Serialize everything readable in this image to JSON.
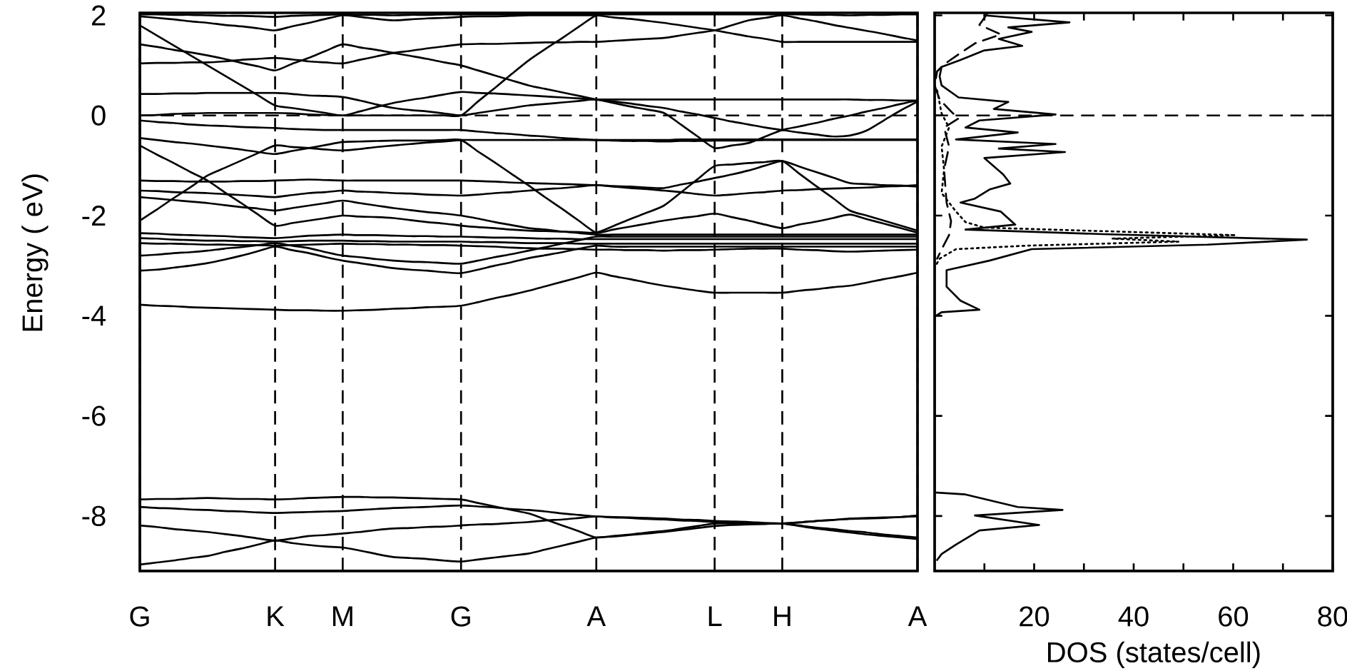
{
  "chart_data": [
    {
      "type": "line",
      "ylabel": "Energy ( eV)",
      "grid": "x",
      "categories": [
        "G",
        null,
        null,
        null,
        null,
        null,
        null,
        null,
        "K",
        null,
        null,
        null,
        "M",
        null,
        null,
        null,
        null,
        null,
        null,
        "G",
        null,
        null,
        null,
        null,
        null,
        null,
        null,
        "A",
        null,
        null,
        null,
        null,
        null,
        null,
        "L",
        null,
        null,
        null,
        "H",
        null,
        null,
        null,
        null,
        null,
        null,
        null,
        "A"
      ],
      "ylim": [
        -9.1,
        2.05
      ],
      "yticks": [
        -8,
        -6,
        -4,
        -2,
        0,
        2
      ],
      "ref_lines": [
        {
          "axis": "y",
          "value": 0,
          "line_style": "dashed"
        }
      ],
      "series": [
        {
          "color": "#000000",
          "values": [
            2.02,
            2.02,
            2.01,
            2.01,
            2.0,
            1.99,
            1.99,
            1.98,
            1.97,
            1.99,
            2.0,
            2.01,
            2.02,
            2.01,
            2.01,
            2.0,
            2.01,
            2.01,
            2.02,
            2.02,
            2.02,
            2.02,
            2.02,
            2.02,
            2.02,
            2.02,
            2.02,
            2.02,
            2.02,
            2.02,
            2.02,
            2.02,
            2.02,
            2.02,
            2.02,
            2.02,
            2.02,
            2.02,
            2.02,
            2.02,
            2.01,
            2.01,
            2.0,
            2.01,
            2.01,
            2.02,
            2.02
          ]
        },
        {
          "color": "#000000",
          "values": [
            1.98,
            1.95,
            1.92,
            1.88,
            1.85,
            1.81,
            1.78,
            1.74,
            1.7,
            1.78,
            1.85,
            1.93,
            2.0,
            1.97,
            1.93,
            1.9,
            1.92,
            1.94,
            1.95,
            1.97,
            1.98,
            1.98,
            1.99,
            2.0,
            2.0,
            2.0,
            2.0,
            2.0,
            1.96,
            1.93,
            1.89,
            1.85,
            1.8,
            1.75,
            1.7,
            1.64,
            1.58,
            1.53,
            1.47,
            1.47,
            1.47,
            1.47,
            1.47,
            1.47,
            1.47,
            1.47,
            1.47
          ]
        },
        {
          "color": "#000000",
          "values": [
            1.8,
            1.6,
            1.4,
            1.2,
            1.0,
            0.8,
            0.6,
            0.4,
            0.2,
            0.15,
            0.1,
            0.05,
            0.0,
            0.08,
            0.17,
            0.25,
            0.31,
            0.36,
            0.42,
            0.47,
            0.45,
            0.44,
            0.42,
            0.4,
            0.38,
            0.36,
            0.34,
            0.32,
            0.32,
            0.32,
            0.32,
            0.32,
            0.32,
            0.32,
            0.32,
            0.32,
            0.32,
            0.32,
            0.32,
            0.32,
            0.32,
            0.32,
            0.32,
            0.31,
            0.31,
            0.3,
            0.3
          ]
        },
        {
          "color": "#000000",
          "values": [
            1.42,
            1.37,
            1.31,
            1.26,
            1.2,
            1.13,
            1.05,
            0.98,
            0.9,
            1.03,
            1.15,
            1.29,
            1.42,
            1.36,
            1.31,
            1.25,
            1.19,
            1.13,
            1.06,
            1.0,
            0.9,
            0.8,
            0.7,
            0.6,
            0.53,
            0.46,
            0.39,
            0.32,
            0.28,
            0.24,
            0.19,
            0.15,
            0.08,
            0.02,
            -0.05,
            -0.12,
            -0.18,
            -0.24,
            -0.29,
            -0.34,
            -0.38,
            -0.42,
            -0.4,
            -0.3,
            -0.1,
            0.1,
            0.28
          ]
        },
        {
          "color": "#000000",
          "values": [
            1.04,
            1.05,
            1.05,
            1.06,
            1.06,
            1.08,
            1.11,
            1.13,
            1.15,
            1.12,
            1.08,
            1.06,
            1.04,
            1.11,
            1.18,
            1.25,
            1.29,
            1.34,
            1.38,
            1.42,
            1.43,
            1.43,
            1.44,
            1.45,
            1.46,
            1.46,
            1.47,
            1.47,
            1.49,
            1.51,
            1.53,
            1.55,
            1.6,
            1.65,
            1.7,
            1.8,
            1.9,
            1.95,
            2.0,
            1.94,
            1.88,
            1.81,
            1.75,
            1.69,
            1.63,
            1.56,
            1.5
          ]
        },
        {
          "color": "#000000",
          "values": [
            0.43,
            0.43,
            0.44,
            0.44,
            0.45,
            0.45,
            0.45,
            0.45,
            0.45,
            0.43,
            0.4,
            0.39,
            0.37,
            0.3,
            0.22,
            0.15,
            0.11,
            0.08,
            0.04,
            0.0,
            0.05,
            0.1,
            0.15,
            0.2,
            0.23,
            0.26,
            0.29,
            0.32,
            0.25,
            0.18,
            0.12,
            0.05,
            -0.18,
            -0.42,
            -0.65,
            -0.6,
            -0.55,
            -0.42,
            -0.29,
            -0.22,
            -0.15,
            -0.07,
            0.0,
            0.08,
            0.15,
            0.23,
            0.3
          ]
        },
        {
          "color": "#000000",
          "values": [
            0.0,
            0.01,
            0.03,
            0.04,
            0.05,
            0.05,
            0.05,
            0.05,
            0.05,
            0.04,
            0.02,
            0.01,
            0.0,
            0.0,
            0.0,
            0.0,
            0.0,
            0.0,
            0.0,
            0.0,
            0.28,
            0.55,
            0.83,
            1.1,
            1.33,
            1.55,
            1.78,
            2.0,
            2.05,
            null,
            null,
            null,
            null,
            null,
            null,
            null,
            null,
            null,
            null,
            null,
            null,
            null,
            null,
            null,
            null,
            null,
            null
          ]
        },
        {
          "color": "#000000",
          "values": [
            -0.1,
            -0.13,
            -0.15,
            -0.18,
            -0.2,
            -0.21,
            -0.23,
            -0.24,
            -0.25,
            -0.27,
            -0.28,
            -0.29,
            -0.29,
            -0.29,
            -0.29,
            -0.29,
            -0.29,
            -0.29,
            -0.29,
            -0.29,
            -0.32,
            -0.35,
            -0.37,
            -0.4,
            -0.42,
            -0.45,
            -0.47,
            -0.49,
            -0.49,
            -0.49,
            -0.49,
            -0.49,
            -0.48,
            -0.48,
            -0.48,
            -0.48,
            -0.48,
            -0.48,
            -0.48,
            -0.48,
            -0.48,
            -0.48,
            -0.48,
            -0.48,
            -0.48,
            -0.48,
            -0.48
          ]
        },
        {
          "color": "#000000",
          "values": [
            -0.45,
            -0.49,
            -0.53,
            -0.56,
            -0.6,
            -0.64,
            -0.68,
            -0.73,
            -0.77,
            -0.71,
            -0.65,
            -0.59,
            -0.53,
            -0.52,
            -0.51,
            -0.5,
            -0.5,
            -0.5,
            -0.49,
            -0.49,
            -0.72,
            -0.94,
            -1.17,
            -1.4,
            -1.64,
            -1.87,
            -2.11,
            -2.34,
            -2.28,
            -2.22,
            -2.16,
            -2.1,
            -2.05,
            -2.01,
            -1.96,
            -2.03,
            -2.1,
            -2.18,
            -2.25,
            -2.18,
            -2.12,
            -2.05,
            -1.98,
            -2.07,
            -2.16,
            -2.25,
            -2.34
          ]
        },
        {
          "color": "#000000",
          "values": [
            -0.6,
            -0.78,
            -0.95,
            -1.13,
            -1.3,
            -1.53,
            -1.75,
            -1.98,
            -2.2,
            -2.15,
            -2.1,
            -2.05,
            -2.0,
            -2.02,
            -2.03,
            -2.05,
            -2.09,
            -2.13,
            -2.16,
            -2.2,
            -2.23,
            -2.25,
            -2.28,
            -2.3,
            -2.31,
            -2.32,
            -2.33,
            -2.34,
            -2.21,
            -2.07,
            -1.94,
            -1.8,
            -1.54,
            -1.27,
            -1.01,
            -0.98,
            -0.95,
            -0.93,
            -0.91,
            -1.16,
            -1.41,
            -1.65,
            -1.9,
            -2.0,
            -2.1,
            -2.2,
            -2.3
          ]
        },
        {
          "color": "#000000",
          "values": [
            -2.1,
            -1.88,
            -1.65,
            -1.43,
            -1.2,
            -1.05,
            -0.9,
            -0.75,
            -0.6,
            -0.63,
            -0.65,
            -0.68,
            -0.7,
            -0.67,
            -0.63,
            -0.6,
            -0.57,
            -0.54,
            -0.52,
            -0.49,
            -0.49,
            -0.49,
            -0.49,
            -0.49,
            -0.49,
            -0.49,
            -0.49,
            -0.49,
            -0.5,
            -0.51,
            -0.51,
            -0.52,
            -0.51,
            -0.51,
            -0.5,
            -0.5,
            -0.5,
            -0.49,
            -0.49,
            -0.49,
            -0.49,
            -0.49,
            -0.49,
            -0.49,
            -0.49,
            -0.49,
            -0.49
          ]
        },
        {
          "color": "#000000",
          "values": [
            -1.3,
            -1.31,
            -1.31,
            -1.32,
            -1.32,
            -1.32,
            -1.31,
            -1.31,
            -1.3,
            -1.29,
            -1.28,
            -1.29,
            -1.3,
            -1.3,
            -1.3,
            -1.3,
            -1.3,
            -1.3,
            -1.3,
            -1.3,
            -1.31,
            -1.32,
            -1.34,
            -1.35,
            -1.36,
            -1.37,
            -1.38,
            -1.39,
            -1.42,
            -1.45,
            -1.47,
            -1.5,
            -1.53,
            -1.57,
            -1.6,
            -1.58,
            -1.55,
            -1.53,
            -1.5,
            -1.49,
            -1.47,
            -1.46,
            -1.45,
            -1.44,
            -1.42,
            -1.41,
            -1.39
          ]
        },
        {
          "color": "#000000",
          "values": [
            -1.5,
            -1.51,
            -1.53,
            -1.54,
            -1.55,
            -1.57,
            -1.59,
            -1.61,
            -1.63,
            -1.59,
            -1.55,
            -1.53,
            -1.5,
            -1.52,
            -1.53,
            -1.55,
            -1.56,
            -1.58,
            -1.59,
            -1.6,
            -1.58,
            -1.55,
            -1.53,
            -1.5,
            -1.47,
            -1.45,
            -1.42,
            -1.39,
            -1.41,
            -1.42,
            -1.44,
            -1.45,
            -1.38,
            -1.32,
            -1.25,
            -1.18,
            -1.1,
            -1.0,
            -0.91,
            -1.02,
            -1.13,
            -1.24,
            -1.35,
            -1.37,
            -1.39,
            -1.4,
            -1.42
          ]
        },
        {
          "color": "#000000",
          "values": [
            -1.63,
            -1.66,
            -1.69,
            -1.72,
            -1.75,
            -1.79,
            -1.83,
            -1.86,
            -1.9,
            -1.85,
            -1.8,
            -1.75,
            -1.7,
            -1.75,
            -1.8,
            -1.85,
            -1.89,
            -1.93,
            -1.96,
            -2.0,
            -2.06,
            -2.13,
            -2.19,
            -2.25,
            -2.28,
            -2.32,
            -2.35,
            -2.38,
            -2.38,
            -2.38,
            -2.38,
            -2.38,
            -2.38,
            -2.38,
            -2.38,
            -2.38,
            -2.38,
            -2.38,
            -2.38,
            -2.38,
            -2.38,
            -2.38,
            -2.38,
            -2.38,
            -2.38,
            -2.38,
            -2.38
          ]
        },
        {
          "color": "#000000",
          "values": [
            -2.35,
            -2.36,
            -2.38,
            -2.39,
            -2.4,
            -2.41,
            -2.43,
            -2.44,
            -2.45,
            -2.43,
            -2.4,
            -2.39,
            -2.38,
            -2.39,
            -2.39,
            -2.4,
            -2.41,
            -2.41,
            -2.42,
            -2.42,
            -2.43,
            -2.44,
            -2.44,
            -2.45,
            -2.46,
            -2.46,
            -2.47,
            -2.47,
            -2.47,
            -2.47,
            -2.47,
            -2.47,
            -2.47,
            -2.47,
            -2.47,
            -2.47,
            -2.47,
            -2.47,
            -2.47,
            -2.47,
            -2.47,
            -2.47,
            -2.47,
            -2.47,
            -2.47,
            -2.47,
            -2.47
          ]
        },
        {
          "color": "#000000",
          "values": [
            -2.45,
            -2.46,
            -2.48,
            -2.49,
            -2.5,
            -2.5,
            -2.51,
            -2.51,
            -2.52,
            -2.51,
            -2.5,
            -2.5,
            -2.5,
            -2.51,
            -2.51,
            -2.52,
            -2.52,
            -2.52,
            -2.52,
            -2.52,
            -2.53,
            -2.53,
            -2.54,
            -2.55,
            -2.55,
            -2.55,
            -2.56,
            -2.56,
            -2.56,
            -2.56,
            -2.56,
            -2.56,
            -2.56,
            -2.56,
            -2.56,
            -2.56,
            -2.56,
            -2.56,
            -2.56,
            -2.56,
            -2.56,
            -2.56,
            -2.56,
            -2.56,
            -2.56,
            -2.56,
            -2.56
          ]
        },
        {
          "color": "#000000",
          "values": [
            -2.55,
            -2.56,
            -2.56,
            -2.57,
            -2.58,
            -2.58,
            -2.59,
            -2.59,
            -2.6,
            -2.59,
            -2.58,
            -2.57,
            -2.56,
            -2.57,
            -2.57,
            -2.58,
            -2.58,
            -2.59,
            -2.59,
            -2.6,
            -2.61,
            -2.62,
            -2.64,
            -2.65,
            -2.66,
            -2.66,
            -2.67,
            -2.68,
            -2.68,
            -2.69,
            -2.69,
            -2.7,
            -2.69,
            -2.69,
            -2.68,
            -2.67,
            -2.66,
            -2.66,
            -2.66,
            -2.68,
            -2.69,
            -2.71,
            -2.72,
            -2.71,
            -2.7,
            -2.69,
            -2.68
          ]
        },
        {
          "color": "#000000",
          "values": [
            -2.8,
            -2.78,
            -2.75,
            -2.73,
            -2.7,
            -2.66,
            -2.63,
            -2.59,
            -2.55,
            -2.6,
            -2.65,
            -2.73,
            -2.8,
            -2.83,
            -2.87,
            -2.9,
            -2.92,
            -2.93,
            -2.95,
            -2.96,
            -2.9,
            -2.83,
            -2.77,
            -2.7,
            -2.63,
            -2.56,
            -2.49,
            -2.42,
            -2.42,
            -2.42,
            -2.42,
            -2.42,
            -2.42,
            -2.42,
            -2.42,
            -2.42,
            -2.42,
            -2.42,
            -2.42,
            -2.42,
            -2.42,
            -2.42,
            -2.42,
            -2.42,
            -2.42,
            -2.42,
            -2.42
          ]
        },
        {
          "color": "#000000",
          "values": [
            -3.1,
            -3.08,
            -3.04,
            -3.0,
            -2.95,
            -2.88,
            -2.8,
            -2.71,
            -2.62,
            -2.69,
            -2.75,
            -2.83,
            -2.9,
            -2.95,
            -3.0,
            -3.05,
            -3.08,
            -3.1,
            -3.13,
            -3.15,
            -3.08,
            -3.0,
            -2.93,
            -2.85,
            -2.79,
            -2.73,
            -2.66,
            -2.6,
            -2.62,
            -2.62,
            -2.62,
            -2.62,
            -2.62,
            -2.62,
            -2.62,
            -2.62,
            -2.62,
            -2.62,
            -2.62,
            -2.62,
            -2.62,
            -2.62,
            -2.62,
            -2.62,
            -2.62,
            -2.62,
            -2.62
          ]
        },
        {
          "color": "#000000",
          "values": [
            -3.78,
            -3.8,
            -3.81,
            -3.83,
            -3.84,
            -3.85,
            -3.86,
            -3.87,
            -3.88,
            -3.89,
            -3.89,
            -3.9,
            -3.9,
            -3.89,
            -3.88,
            -3.86,
            -3.85,
            -3.83,
            -3.82,
            -3.8,
            -3.73,
            -3.65,
            -3.58,
            -3.5,
            -3.41,
            -3.32,
            -3.23,
            -3.14,
            -3.21,
            -3.27,
            -3.34,
            -3.4,
            -3.45,
            -3.5,
            -3.54,
            -3.54,
            -3.54,
            -3.54,
            -3.54,
            -3.5,
            -3.47,
            -3.43,
            -3.4,
            -3.34,
            -3.27,
            -3.21,
            -3.14
          ]
        },
        {
          "color": "#000000",
          "values": [
            -7.67,
            -7.66,
            -7.66,
            -7.65,
            -7.64,
            -7.65,
            -7.66,
            -7.66,
            -7.67,
            -7.66,
            -7.64,
            -7.63,
            -7.62,
            -7.62,
            -7.63,
            -7.63,
            -7.64,
            -7.65,
            -7.66,
            -7.67,
            -7.74,
            -7.81,
            -7.88,
            -7.95,
            -8.07,
            -8.19,
            -8.31,
            -8.43,
            -8.4,
            -8.37,
            -8.33,
            -8.3,
            -8.25,
            -8.2,
            -8.15,
            -8.15,
            -8.15,
            -8.15,
            -8.15,
            -8.19,
            -8.23,
            -8.26,
            -8.3,
            -8.33,
            -8.37,
            -8.4,
            -8.43
          ]
        },
        {
          "color": "#000000",
          "values": [
            -7.82,
            -7.84,
            -7.85,
            -7.87,
            -7.88,
            -7.9,
            -7.91,
            -7.93,
            -7.94,
            -7.93,
            -7.92,
            -7.91,
            -7.9,
            -7.88,
            -7.86,
            -7.84,
            -7.83,
            -7.82,
            -7.8,
            -7.79,
            -7.81,
            -7.83,
            -7.86,
            -7.88,
            -7.91,
            -7.95,
            -7.98,
            -8.01,
            -8.02,
            -8.03,
            -8.04,
            -8.05,
            -8.07,
            -8.08,
            -8.1,
            -8.11,
            -8.12,
            -8.14,
            -8.15,
            -8.13,
            -8.1,
            -8.08,
            -8.06,
            -8.05,
            -8.04,
            -8.02,
            -8.01
          ]
        },
        {
          "color": "#000000",
          "values": [
            -8.19,
            -8.22,
            -8.26,
            -8.29,
            -8.32,
            -8.36,
            -8.4,
            -8.45,
            -8.49,
            -8.45,
            -8.4,
            -8.38,
            -8.35,
            -8.32,
            -8.28,
            -8.25,
            -8.24,
            -8.22,
            -8.21,
            -8.19,
            -8.17,
            -8.16,
            -8.14,
            -8.12,
            -8.09,
            -8.07,
            -8.04,
            -8.01,
            -8.03,
            -8.04,
            -8.06,
            -8.07,
            -8.09,
            -8.1,
            -8.12,
            -8.13,
            -8.14,
            -8.15,
            -8.15,
            -8.13,
            -8.1,
            -8.08,
            -8.05,
            -8.04,
            -8.03,
            -8.02,
            -7.99
          ]
        },
        {
          "color": "#000000",
          "values": [
            -8.97,
            -8.93,
            -8.89,
            -8.84,
            -8.8,
            -8.72,
            -8.65,
            -8.57,
            -8.49,
            -8.54,
            -8.58,
            -8.61,
            -8.63,
            -8.69,
            -8.76,
            -8.82,
            -8.84,
            -8.86,
            -8.89,
            -8.91,
            -8.87,
            -8.83,
            -8.79,
            -8.75,
            -8.67,
            -8.59,
            -8.51,
            -8.43,
            -8.41,
            -8.38,
            -8.35,
            -8.32,
            -8.28,
            -8.24,
            -8.2,
            -8.18,
            -8.17,
            -8.16,
            -8.15,
            -8.2,
            -8.25,
            -8.29,
            -8.33,
            -8.37,
            -8.4,
            -8.43,
            -8.46
          ]
        }
      ]
    },
    {
      "type": "line",
      "xlabel": "DOS (states/cell)",
      "xlim": [
        0,
        80
      ],
      "ylim": [
        -9.1,
        2.05
      ],
      "xticks": [
        {
          "value": 10,
          "label": null
        },
        20,
        {
          "value": 30,
          "label": null
        },
        40,
        {
          "value": 50,
          "label": null
        },
        60,
        {
          "value": 70,
          "label": null
        },
        80
      ],
      "yticks": [
        -8,
        -6,
        -4,
        -2,
        0,
        2
      ],
      "tick_labels": "x",
      "ref_lines": [
        {
          "axis": "y",
          "value": 0,
          "line_style": "dashed"
        }
      ],
      "series": [
        {
          "color": "#000000",
          "line_style": "solid",
          "x": [
            10.0,
            27.1,
            14.8,
            19.5,
            12.9,
            17.6,
            10.0,
            5.2,
            1.4,
            1.0,
            1.4,
            4.8,
            14.8,
            11.9,
            24.3,
            9.0,
            6.2,
            16.7,
            4.3,
            24.3,
            12.9,
            26.2,
            10.0,
            13.8,
            15.2,
            11.0,
            8.1,
            5.2,
            13.3,
            16.2,
            6.2,
            33.8,
            74.8,
            54.8,
            19.5,
            11.0,
            2.4,
            2.4,
            5.2,
            9.0,
            1.4,
            0,
            0,
            6.2,
            16.7,
            25.7,
            8.1,
            21.0,
            9.0,
            4.3,
            1.4,
            0.5
          ],
          "values": [
            2.0,
            1.86,
            1.76,
            1.67,
            1.53,
            1.39,
            1.3,
            1.11,
            0.97,
            0.78,
            0.6,
            0.36,
            0.27,
            0.13,
            0.02,
            -0.1,
            -0.24,
            -0.34,
            -0.48,
            -0.57,
            -0.66,
            -0.73,
            -0.85,
            -1.18,
            -1.36,
            -1.48,
            -1.66,
            -1.74,
            -1.92,
            -2.18,
            -2.28,
            -2.37,
            -2.48,
            -2.58,
            -2.67,
            -2.9,
            -3.09,
            -3.42,
            -3.7,
            -3.88,
            -3.93,
            -4.02,
            -7.53,
            -7.57,
            -7.82,
            -7.88,
            -7.99,
            -8.18,
            -8.29,
            -8.57,
            -8.76,
            -8.88
          ]
        },
        {
          "color": "#000000",
          "line_style": "dotted",
          "x": [
            0.5,
            1.4,
            2.9,
            1.4,
            1.9,
            1.4,
            4.3,
            6.2,
            10.0,
            60.5,
            35.7,
            49.0,
            18.6,
            4.3,
            1.0,
            0
          ],
          "values": [
            0.5,
            0.04,
            -0.24,
            -0.62,
            -1.08,
            -1.55,
            -1.92,
            -2.13,
            -2.24,
            -2.39,
            -2.46,
            -2.52,
            -2.6,
            -2.67,
            -2.86,
            -3.04
          ]
        },
        {
          "color": "#000000",
          "line_style": "dashed",
          "x": [
            10.5,
            9.0,
            13.3,
            8.1,
            5.2,
            1.9,
            0.5,
            0,
            1.0,
            3.3,
            4.8,
            1.9,
            2.9,
            1.9,
            2.4,
            3.3,
            2.9,
            1.9,
            0.5
          ],
          "values": [
            2.02,
            1.81,
            1.62,
            1.44,
            1.25,
            1.02,
            0.88,
            0.6,
            0.32,
            0.08,
            -0.06,
            -0.24,
            -0.62,
            -1.08,
            -1.74,
            -2.11,
            -2.39,
            -2.58,
            -2.86
          ]
        }
      ]
    }
  ]
}
